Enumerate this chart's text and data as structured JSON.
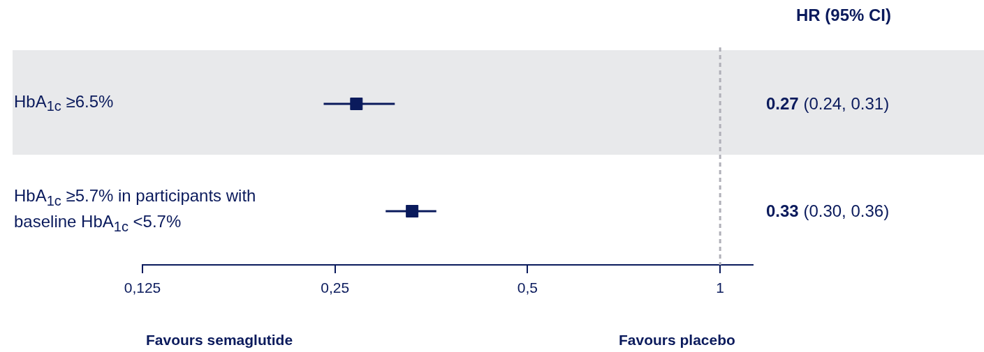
{
  "chart_data": {
    "type": "scatter",
    "orientation": "horizontal",
    "categories": [
      "HbA$_{1c}$ ≥6.5%",
      "HbA$_{1c}$ ≥5.7% in participants with baseline HbA$_{1c}$ <5.7%"
    ],
    "values": [
      0.27,
      0.33
    ],
    "errors": [
      [
        0.24,
        0.31
      ],
      [
        0.3,
        0.36
      ]
    ],
    "bands": [
      {
        "axis": "y",
        "from": "HbA$_{1c}$ ≥6.5%",
        "to": "HbA$_{1c}$ ≥6.5%",
        "color": "#e8e9eb"
      }
    ],
    "value_labels": [
      "0.27 (0.24, 0.31)",
      "0.33 (0.30, 0.36)"
    ],
    "color": "#0a1a5c",
    "marker": "square",
    "log": "x",
    "xlim": [
      0.125,
      1.125
    ],
    "xticks": [
      {
        "value": 0.125,
        "label": "0,125"
      },
      {
        "value": 0.25,
        "label": "0,25"
      },
      {
        "value": 0.5,
        "label": "0,5"
      },
      {
        "value": 1,
        "label": "1"
      }
    ],
    "ref_lines": [
      {
        "axis": "x",
        "value": 1,
        "color": "#b0b0b8",
        "line_style": "dashed"
      }
    ],
    "annotations": [
      "HR (95% CI)",
      "Favours semaglutide",
      "Favours placebo"
    ],
    "legend": false
  }
}
